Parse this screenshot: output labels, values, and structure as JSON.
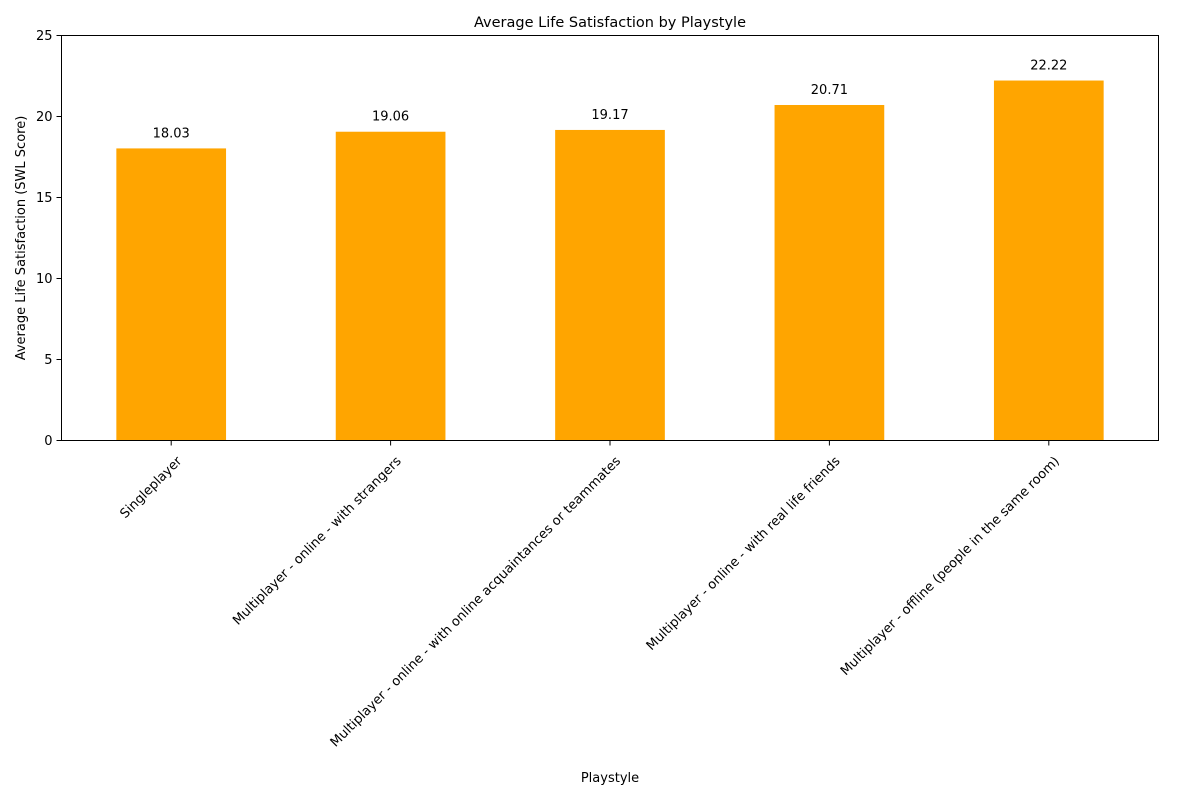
{
  "chart_data": {
    "type": "bar",
    "title": "Average Life Satisfaction by Playstyle",
    "xlabel": "Playstyle",
    "ylabel": "Average Life Satisfaction (SWL Score)",
    "categories": [
      "Singleplayer",
      "Multiplayer - online - with strangers",
      "Multiplayer - online - with online acquaintances or teammates",
      "Multiplayer - online - with real life friends",
      "Multiplayer - offline (people in the same room)"
    ],
    "values": [
      18.03,
      19.06,
      19.17,
      20.71,
      22.22
    ],
    "value_labels": [
      "18.03",
      "19.06",
      "19.17",
      "20.71",
      "22.22"
    ],
    "ylim": [
      0,
      25
    ],
    "yticks": [
      0,
      5,
      10,
      15,
      20,
      25
    ],
    "ytick_labels": [
      "0",
      "5",
      "10",
      "15",
      "20",
      "25"
    ],
    "bar_color": "#ffa500",
    "grid": false
  }
}
